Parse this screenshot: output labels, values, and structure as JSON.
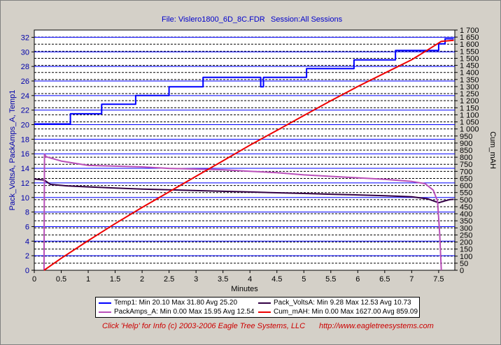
{
  "header": {
    "file_label": "File: Vislero1800_6D_8C.FDR",
    "session_label": "Session:All Sessions"
  },
  "chart_data": {
    "type": "line",
    "xlabel": "Minutes",
    "ylabel_left": "Pack_VoltsA, PackAmps_A, Temp1",
    "ylabel_right": "Cum_mAH",
    "x_range": [
      0,
      7.8
    ],
    "y_left_range": [
      0,
      33
    ],
    "y_right_range": [
      0,
      1700
    ],
    "x_ticks": [
      "0",
      "0.5",
      "1",
      "1.5",
      "2",
      "2.5",
      "3",
      "3.5",
      "4",
      "4.5",
      "5",
      "5.5",
      "6",
      "6.5",
      "7",
      "7.5"
    ],
    "y_left_ticks": [
      "0",
      "2",
      "4",
      "6",
      "8",
      "10",
      "12",
      "14",
      "16",
      "18",
      "20",
      "22",
      "24",
      "26",
      "28",
      "30",
      "32"
    ],
    "y_right_ticks": [
      "0",
      "50",
      "100",
      "150",
      "200",
      "250",
      "300",
      "350",
      "400",
      "450",
      "500",
      "550",
      "600",
      "650",
      "700",
      "750",
      "800",
      "850",
      "900",
      "950",
      "1 000",
      "1 050",
      "1 100",
      "1 150",
      "1 200",
      "1 250",
      "1 300",
      "1 350",
      "1 400",
      "1 450",
      "1 500",
      "1 550",
      "1 600",
      "1 650",
      "1 700"
    ],
    "grid": true,
    "series": [
      {
        "name": "Temp1",
        "color": "#0000ff",
        "axis": "left",
        "step": true,
        "x": [
          0.0,
          0.67,
          0.67,
          1.25,
          1.25,
          1.88,
          1.88,
          2.5,
          2.5,
          3.13,
          3.13,
          4.2,
          4.2,
          4.25,
          4.25,
          5.05,
          5.05,
          5.93,
          5.93,
          6.7,
          6.7,
          7.5,
          7.5,
          7.62,
          7.62,
          7.72,
          7.72,
          7.78
        ],
        "y": [
          20.1,
          20.1,
          21.5,
          21.5,
          22.8,
          22.8,
          24.0,
          24.0,
          25.2,
          25.2,
          26.5,
          26.5,
          25.2,
          25.2,
          26.5,
          26.5,
          27.7,
          27.7,
          28.9,
          28.9,
          30.2,
          30.2,
          31.1,
          31.1,
          31.8,
          31.8,
          31.8,
          31.8
        ]
      },
      {
        "name": "Pack_VoltsA",
        "color": "#330044",
        "axis": "left",
        "x": [
          0.0,
          0.18,
          0.3,
          0.6,
          1.0,
          1.5,
          2.0,
          2.5,
          3.0,
          3.5,
          4.0,
          4.5,
          5.0,
          5.5,
          6.0,
          6.5,
          7.0,
          7.3,
          7.5,
          7.6,
          7.7,
          7.78
        ],
        "y": [
          12.53,
          12.4,
          11.8,
          11.6,
          11.45,
          11.3,
          11.15,
          11.05,
          10.95,
          10.85,
          10.75,
          10.65,
          10.55,
          10.45,
          10.35,
          10.25,
          10.1,
          9.8,
          9.28,
          9.5,
          9.7,
          9.75
        ]
      },
      {
        "name": "PackAmps_A",
        "color": "#b94fb9",
        "axis": "left",
        "x": [
          0.18,
          0.19,
          0.22,
          0.5,
          1.0,
          1.5,
          2.0,
          2.5,
          3.0,
          3.5,
          4.0,
          4.5,
          5.0,
          5.5,
          6.0,
          6.5,
          7.0,
          7.25,
          7.4,
          7.48,
          7.52,
          7.55
        ],
        "y": [
          0.0,
          15.95,
          15.6,
          15.0,
          14.4,
          14.3,
          14.2,
          14.0,
          13.9,
          13.8,
          13.6,
          13.4,
          13.1,
          12.9,
          12.7,
          12.5,
          12.2,
          11.9,
          11.0,
          9.5,
          5.0,
          0.0
        ]
      },
      {
        "name": "Cum_mAH",
        "color": "#ee0000",
        "axis": "right",
        "x": [
          0.18,
          0.5,
          1.0,
          1.5,
          2.0,
          2.5,
          3.0,
          3.5,
          4.0,
          4.5,
          5.0,
          5.5,
          6.0,
          6.5,
          7.0,
          7.3,
          7.55,
          7.78
        ],
        "y": [
          0,
          85,
          210,
          330,
          445,
          555,
          665,
          775,
          885,
          990,
          1095,
          1200,
          1300,
          1395,
          1490,
          1560,
          1620,
          1627
        ]
      }
    ],
    "legend": [
      {
        "name": "Temp1",
        "text": "Temp1:  Min 20.10 Max 31.80 Avg 25.20",
        "color": "#0000ff"
      },
      {
        "name": "Pack_VoltsA",
        "text": "Pack_VoltsA:  Min 9.28 Max 12.53 Avg 10.73",
        "color": "#330044"
      },
      {
        "name": "PackAmps_A",
        "text": "PackAmps_A:  Min 0.00 Max 15.95 Avg 12.54",
        "color": "#b94fb9"
      },
      {
        "name": "Cum_mAH",
        "text": "Cum_mAH:  Min 0.00 Max 1627.00 Avg 859.09",
        "color": "#ee0000"
      }
    ],
    "legend_placement": "bottom"
  },
  "footer": {
    "help_text": "Click 'Help' for Info  (c) 2003-2006 Eagle Tree Systems, LLC",
    "url_text": "http://www.eagletreesystems.com"
  }
}
